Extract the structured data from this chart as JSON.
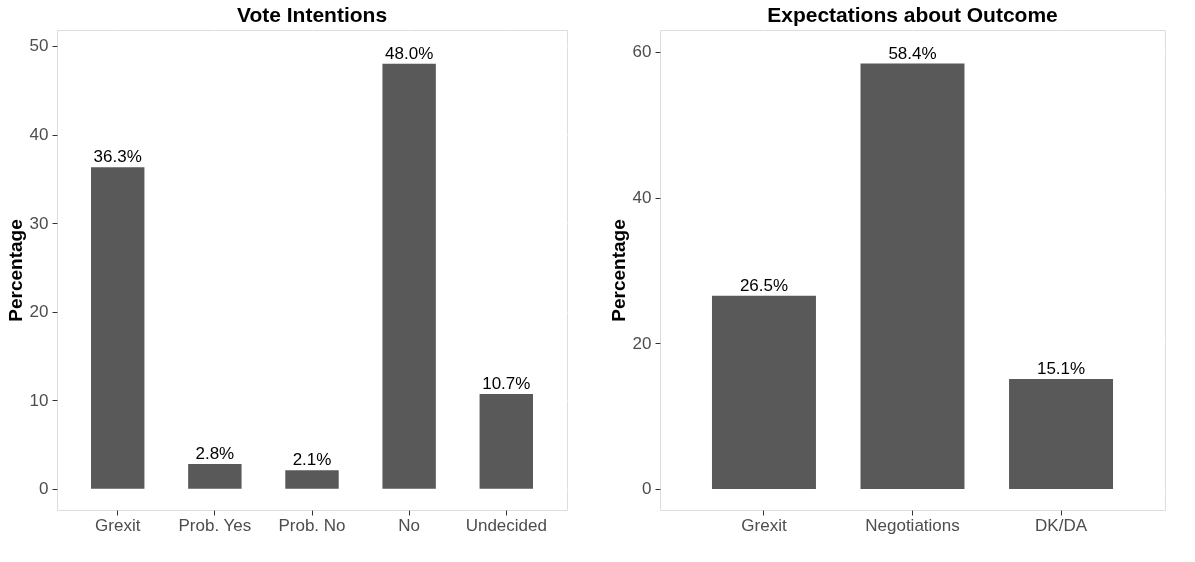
{
  "chart_data": [
    {
      "type": "bar",
      "title": "Vote Intentions",
      "ylabel": "Percentage",
      "categories": [
        "Grexit",
        "Prob. Yes",
        "Prob. No",
        "No",
        "Undecided"
      ],
      "values": [
        36.3,
        2.8,
        2.1,
        48.0,
        10.7
      ],
      "color": "#595959",
      "value_labels": [
        "36.3%",
        "2.8%",
        "2.1%",
        "48.0%",
        "10.7%"
      ],
      "ylim": [
        -2.4,
        51.8
      ],
      "yticks": [
        0,
        10,
        20,
        30,
        40,
        50
      ],
      "grid": true
    },
    {
      "type": "bar",
      "title": "Expectations about Outcome",
      "ylabel": "Percentage",
      "categories": [
        "Grexit",
        "Negotiations",
        "DK/DA"
      ],
      "values": [
        26.5,
        58.4,
        15.1
      ],
      "color": "#595959",
      "value_labels": [
        "26.5%",
        "58.4%",
        "15.1%"
      ],
      "ylim": [
        -2.9,
        63
      ],
      "yticks": [
        0,
        20,
        40,
        60
      ],
      "grid": true
    }
  ]
}
